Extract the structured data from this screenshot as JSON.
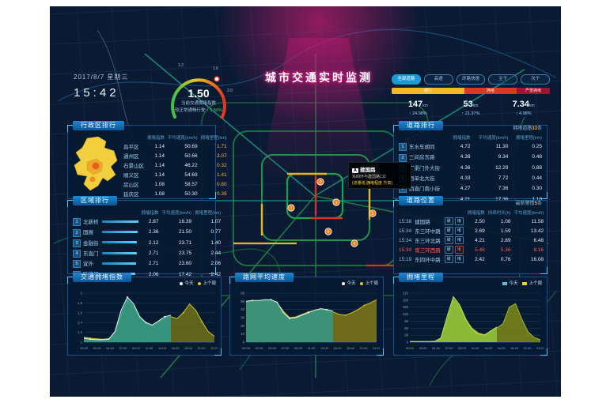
{
  "header": {
    "date": "2017/8/7 星期三",
    "time": "15:42",
    "title": "城市交通实时监测",
    "gauge": {
      "value": "1.50",
      "label": "当前交通拥堵指数",
      "sub_prefix": "较正常通畅行驶",
      "sub_delta": "↑ 1.50%",
      "ticks": [
        "1.2",
        "1.6",
        "2.0"
      ]
    },
    "road_filters": [
      {
        "label": "全部道路",
        "active": true
      },
      {
        "label": "高速",
        "active": false
      },
      {
        "label": "环路快速",
        "active": false
      },
      {
        "label": "主干",
        "active": false
      },
      {
        "label": "次干",
        "active": false
      }
    ],
    "severity_bar": [
      {
        "label": "缓行",
        "color": "#f0bc1c",
        "pct": 46
      },
      {
        "label": "拥堵",
        "color": "#e03424",
        "pct": 33
      },
      {
        "label": "严重拥堵",
        "color": "#9c1430",
        "pct": 21
      }
    ],
    "stats": [
      {
        "value": "147",
        "unit": "km",
        "delta": "↑ 24.98%"
      },
      {
        "value": "53",
        "unit": "km",
        "delta": "↑ 21.97%"
      },
      {
        "value": "7.34",
        "unit": "km",
        "delta": "↑ 4.98%"
      }
    ]
  },
  "panels": {
    "district": {
      "title": "行政区排行",
      "headers": [
        "拥堵指数",
        "平均速度(km/h)",
        "拥堵里程(km)"
      ],
      "rows": [
        {
          "name": "昌平区",
          "index": "1.14",
          "speed": "50.69",
          "mileage": "1.71"
        },
        {
          "name": "通州区",
          "index": "1.14",
          "speed": "50.66",
          "mileage": "3.07"
        },
        {
          "name": "石景山区",
          "index": "1.14",
          "speed": "46.22",
          "mileage": "0.32"
        },
        {
          "name": "顺义区",
          "index": "1.14",
          "speed": "54.69",
          "mileage": "1.41"
        },
        {
          "name": "房山区",
          "index": "1.08",
          "speed": "58.57",
          "mileage": "0.80"
        },
        {
          "name": "延庆区",
          "index": "1.08",
          "speed": "50.30",
          "mileage": "0.39"
        }
      ]
    },
    "area": {
      "title": "区域排行",
      "headers": [
        "拥堵指数",
        "平均速度(km/h)",
        "拥堵里程(km)"
      ],
      "rows": [
        {
          "rank": "1",
          "name": "北新桥",
          "bar": 92,
          "index": "2.87",
          "speed": "16.39",
          "mileage": "1.07"
        },
        {
          "rank": "2",
          "name": "国展",
          "bar": 90,
          "index": "2.36",
          "speed": "21.50",
          "mileage": "0.77"
        },
        {
          "rank": "3",
          "name": "金融街",
          "bar": 88,
          "index": "2.12",
          "speed": "23.71",
          "mileage": "1.40"
        },
        {
          "rank": "4",
          "name": "东直门",
          "bar": 88,
          "index": "2.71",
          "speed": "23.75",
          "mileage": "2.44"
        },
        {
          "rank": "5",
          "name": "宣外",
          "bar": 86,
          "index": "2.71",
          "speed": "23.60",
          "mileage": "2.06"
        },
        {
          "rank": "6",
          "name": "哈德门",
          "bar": 85,
          "index": "2.06",
          "speed": "17.42",
          "mileage": "2.42"
        }
      ]
    },
    "road": {
      "title": "道路排行",
      "note_prefix": "拥堵道路",
      "note_count": "33",
      "note_suffix": "条",
      "headers": [
        "拥堵指数",
        "平均速度(km/h)",
        "拥堵里程(km)"
      ],
      "rows": [
        {
          "rank": "1",
          "name": "东水车胡同",
          "index": "4.72",
          "speed": "11.30",
          "mileage": "0.25"
        },
        {
          "rank": "2",
          "name": "三间房东路",
          "index": "4.38",
          "speed": "9.34",
          "mileage": "0.48"
        },
        {
          "rank": "3",
          "name": "广渠门外大街",
          "index": "4.36",
          "speed": "12.29",
          "mileage": "0.88"
        },
        {
          "rank": "4",
          "name": "西单北大街",
          "index": "4.33",
          "speed": "7.72",
          "mileage": "0.44"
        },
        {
          "rank": "5",
          "name": "西直门南小街",
          "index": "4.27",
          "speed": "7.36",
          "mileage": "0.30"
        },
        {
          "rank": "6",
          "name": "东三环中路",
          "index": "4.21",
          "speed": "17.36",
          "mileage": "1.18"
        }
      ]
    },
    "alerts": {
      "title": "道路位置",
      "note_prefix": "最新警情",
      "note_count": "5",
      "note_suffix": "条",
      "headers": [
        "拥堵指数",
        "持续时长(h)",
        "平均速度(km/h)"
      ],
      "rows": [
        {
          "time": "15:38",
          "name": "建国路",
          "tag1": "缓",
          "tag2": "堵",
          "index": "2.50",
          "duration": "1.08",
          "speed": "11.58",
          "alert": false
        },
        {
          "time": "15:34",
          "name": "东三环中路",
          "tag1": "缓",
          "tag2": "堵",
          "index": "2.69",
          "duration": "1.59",
          "speed": "13.42",
          "alert": false
        },
        {
          "time": "15:34",
          "name": "东三环北路",
          "tag1": "缓",
          "tag2": "堵",
          "index": "4.21",
          "duration": "2.89",
          "speed": "6.48",
          "alert": false
        },
        {
          "time": "15:34",
          "name": "南三环西路",
          "tag1": "缓",
          "tag2": "堵",
          "index": "5.46",
          "duration": "5.36",
          "speed": "8.16",
          "alert": true
        },
        {
          "time": "15:19",
          "name": "东四环中路",
          "tag1": "缓",
          "tag2": "堵",
          "index": "2.42",
          "duration": "0.76",
          "speed": "16.08",
          "alert": false
        }
      ]
    }
  },
  "map": {
    "tooltip": {
      "badge": "A",
      "name": "建国路",
      "desc": "东四环与建国路口2",
      "note": "(流量增,拥堵程度 升高)"
    },
    "markers": [
      "1",
      "2",
      "3",
      "4",
      "5",
      "6"
    ]
  },
  "chart_data": [
    {
      "panel_title": "交通拥堵指数",
      "type": "area",
      "legend": [
        {
          "label": "今天",
          "color": "#ffffff",
          "shape": "dot"
        },
        {
          "label": "上个周",
          "color": "#e8c51e",
          "shape": "dot"
        }
      ],
      "x_ticks": [
        "00:00",
        "02:20",
        "04:40",
        "07:00",
        "09:20",
        "11:40",
        "14:00",
        "16:20",
        "18:40",
        "21:00",
        "23:20"
      ],
      "ylim": [
        1,
        2
      ],
      "y_ticks": [
        1,
        1.2,
        1.4,
        1.6,
        1.8,
        2
      ],
      "grid": true,
      "legend_position": "top-right",
      "series": [
        {
          "name": "上个周",
          "line": "#cdbf24",
          "fill": "#7e7d16",
          "fillop": 0.75,
          "dots": true,
          "values": [
            1.1,
            1.08,
            1.07,
            1.06,
            1.07,
            1.18,
            1.55,
            1.85,
            1.72,
            1.5,
            1.38,
            1.33,
            1.4,
            1.48,
            1.52,
            1.48,
            1.6,
            1.78,
            1.65,
            1.42,
            1.22,
            1.12
          ]
        },
        {
          "name": "今天",
          "line": "#e8f4f2",
          "fill": "#2a9f96",
          "fillop": 0.8,
          "dots": true,
          "values": [
            1.08,
            1.06,
            1.05,
            1.05,
            1.06,
            1.22,
            1.65,
            1.92,
            1.78,
            1.52,
            1.4,
            1.35,
            1.43,
            1.52,
            1.55,
            null,
            null,
            null,
            null,
            null,
            null,
            null
          ]
        }
      ]
    },
    {
      "panel_title": "路网平均速度",
      "type": "area",
      "legend": [
        {
          "label": "今天",
          "color": "#ffffff",
          "shape": "dot"
        },
        {
          "label": "上个周",
          "color": "#e8c51e",
          "shape": "dot"
        }
      ],
      "x_ticks": [
        "00:00",
        "02:20",
        "04:40",
        "07:00",
        "09:20",
        "11:40",
        "14:00",
        "16:20",
        "18:40",
        "21:00",
        "23:20"
      ],
      "ylim": [
        0,
        60
      ],
      "y_ticks": [
        0,
        10,
        20,
        30,
        40,
        50,
        60
      ],
      "grid": true,
      "legend_position": "top-right",
      "series": [
        {
          "name": "上个周",
          "line": "#cdbf24",
          "fill": "#8a7f16",
          "fillop": 0.8,
          "dots": true,
          "values": [
            49,
            50,
            50,
            51,
            51,
            48,
            38,
            30,
            31,
            34,
            37,
            39,
            40,
            39,
            37,
            34,
            33,
            36,
            40,
            45,
            48,
            52
          ]
        },
        {
          "name": "今天",
          "line": "#d8efec",
          "fill": "#2e9c8f",
          "fillop": 0.8,
          "dots": true,
          "values": [
            50,
            51,
            51,
            52,
            52,
            49,
            36,
            29,
            30,
            33,
            36,
            39,
            41,
            40,
            38,
            null,
            null,
            null,
            null,
            null,
            null,
            null
          ]
        }
      ]
    },
    {
      "panel_title": "拥堵里程",
      "type": "area",
      "legend": [
        {
          "label": "今天",
          "color": "#4fc3d8",
          "shape": "square"
        },
        {
          "label": "上个周",
          "color": "#e8d020",
          "shape": "square"
        }
      ],
      "x_ticks": [
        "00:00",
        "02:20",
        "04:40",
        "07:00",
        "09:20",
        "11:40",
        "14:00",
        "16:20",
        "18:40",
        "21:00",
        "23:20"
      ],
      "ylim": [
        0,
        210
      ],
      "y_ticks": [
        0,
        30,
        60,
        90,
        120,
        150,
        180,
        210
      ],
      "grid": true,
      "legend_position": "top-right",
      "series": [
        {
          "name": "上个周",
          "line": "#a8b425",
          "fill": "#7e8a18",
          "fillop": 0.85,
          "dots": false,
          "values": [
            3,
            3,
            3,
            3,
            4,
            15,
            90,
            180,
            150,
            95,
            60,
            40,
            32,
            45,
            60,
            80,
            150,
            165,
            100,
            45,
            20,
            10
          ]
        },
        {
          "name": "今天",
          "line": "#b6e15e",
          "fill": "#8fc43c",
          "fillop": 0.85,
          "dots": false,
          "values": [
            2,
            2,
            2,
            2,
            3,
            18,
            110,
            195,
            160,
            100,
            55,
            35,
            30,
            48,
            65,
            null,
            null,
            null,
            null,
            null,
            null,
            null
          ]
        }
      ]
    }
  ]
}
